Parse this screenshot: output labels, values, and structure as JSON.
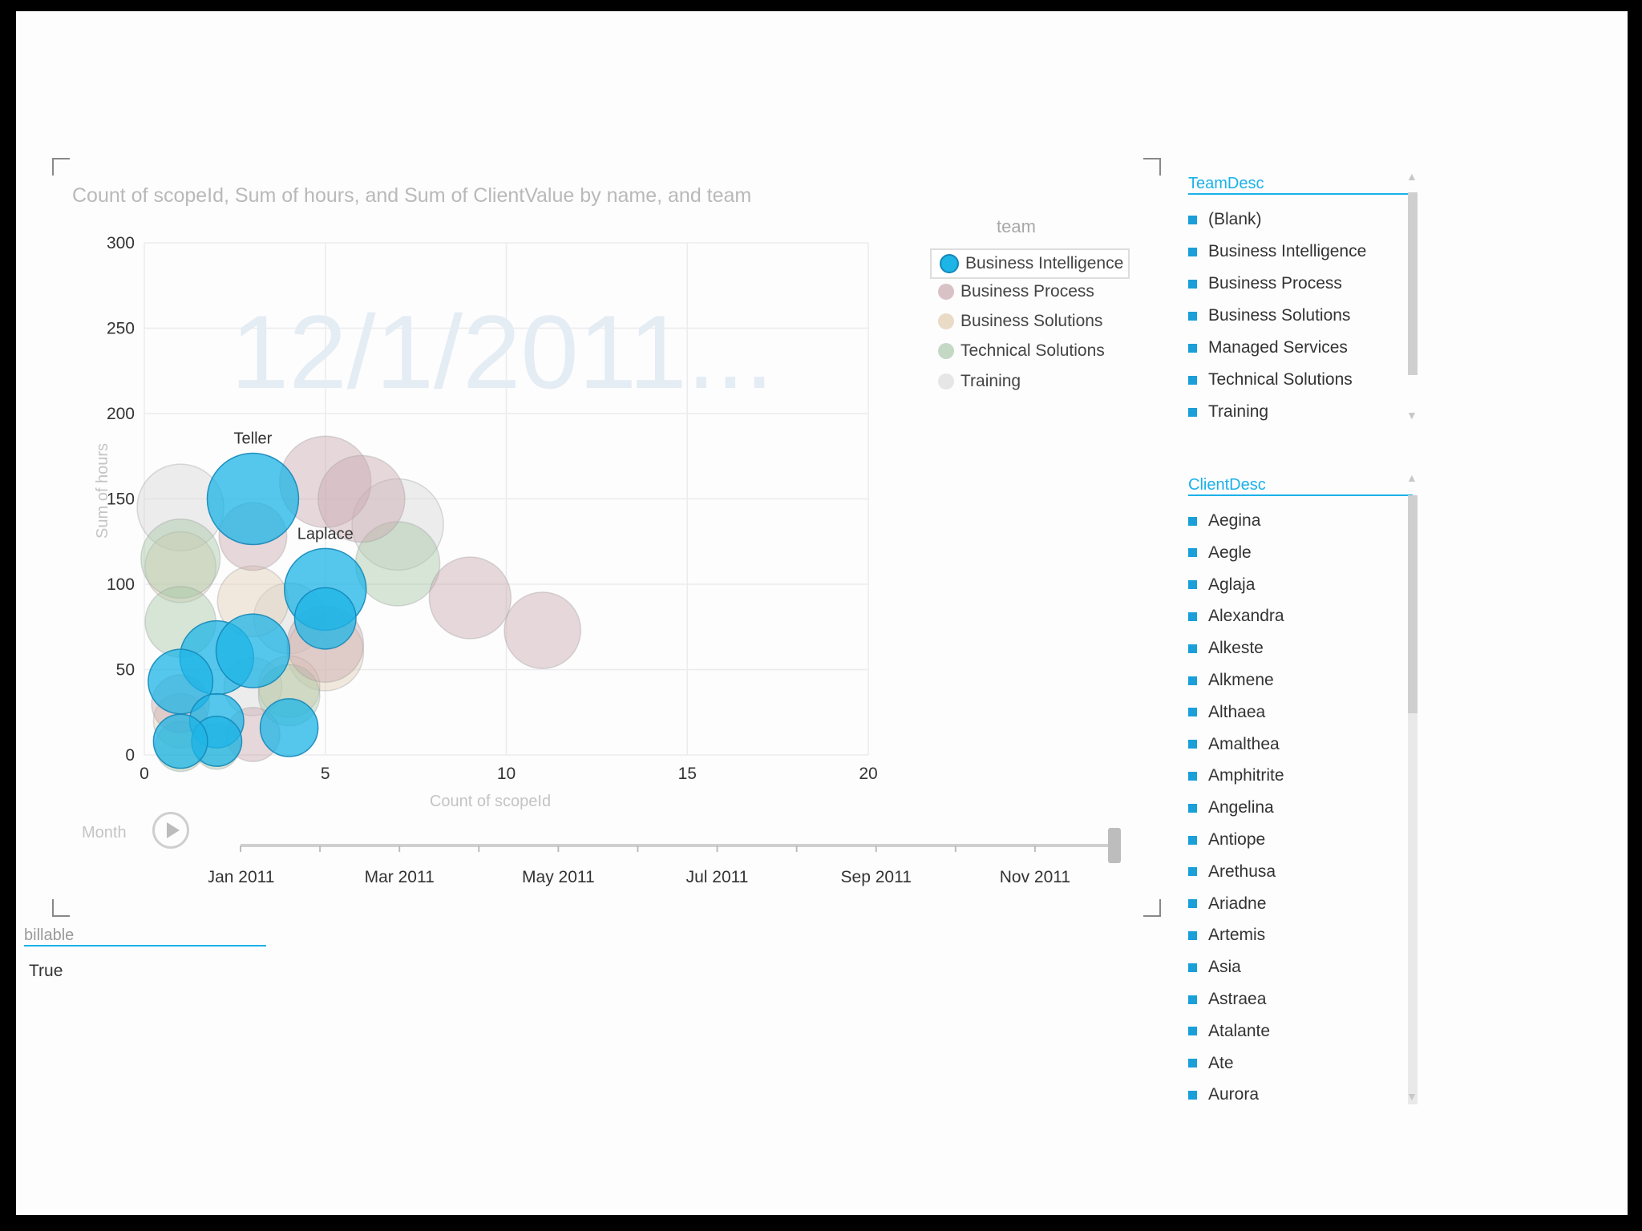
{
  "chart_data": {
    "type": "scatter",
    "title": "Count of scopeId, Sum of hours, and Sum of ClientValue by name, and team",
    "xlabel": "Count of scopeId",
    "ylabel": "Sum of hours",
    "xlim": [
      0,
      20
    ],
    "ylim": [
      0,
      300
    ],
    "x_ticks": [
      0,
      5,
      10,
      15,
      20
    ],
    "y_ticks": [
      0,
      50,
      100,
      150,
      200,
      250,
      300
    ],
    "watermark": "12/1/2011...",
    "legend_title": "team",
    "legend": [
      {
        "name": "Business Intelligence",
        "color": "#1db4e6",
        "selected": true
      },
      {
        "name": "Business Process",
        "color": "#d9c2c6",
        "selected": false
      },
      {
        "name": "Business Solutions",
        "color": "#eadbc6",
        "selected": false
      },
      {
        "name": "Technical Solutions",
        "color": "#c4d9c4",
        "selected": false
      },
      {
        "name": "Training",
        "color": "#e6e6e6",
        "selected": false
      }
    ],
    "series": [
      {
        "name": "Business Intelligence",
        "color": "#1db4e6",
        "points": [
          {
            "x": 3,
            "y": 150,
            "size": 100,
            "label": "Teller"
          },
          {
            "x": 5,
            "y": 97,
            "size": 80,
            "label": "Laplace"
          },
          {
            "x": 2,
            "y": 57,
            "size": 65
          },
          {
            "x": 3,
            "y": 61,
            "size": 65
          },
          {
            "x": 1,
            "y": 43,
            "size": 50
          },
          {
            "x": 2,
            "y": 20,
            "size": 35
          },
          {
            "x": 4,
            "y": 16,
            "size": 40
          },
          {
            "x": 2,
            "y": 8,
            "size": 30
          },
          {
            "x": 1,
            "y": 8,
            "size": 35
          },
          {
            "x": 5,
            "y": 80,
            "size": 45
          }
        ]
      },
      {
        "name": "Business Process",
        "color": "#c9a9b0",
        "points": [
          {
            "x": 5,
            "y": 160,
            "size": 100
          },
          {
            "x": 6,
            "y": 150,
            "size": 90
          },
          {
            "x": 9,
            "y": 92,
            "size": 80
          },
          {
            "x": 11,
            "y": 73,
            "size": 70
          },
          {
            "x": 5,
            "y": 65,
            "size": 70
          },
          {
            "x": 3,
            "y": 12,
            "size": 35
          },
          {
            "x": 1,
            "y": 30,
            "size": 40
          },
          {
            "x": 3,
            "y": 128,
            "size": 55
          }
        ]
      },
      {
        "name": "Business Solutions",
        "color": "#e3cfb5",
        "points": [
          {
            "x": 5,
            "y": 60,
            "size": 70
          },
          {
            "x": 3,
            "y": 90,
            "size": 60
          },
          {
            "x": 1,
            "y": 110,
            "size": 60
          },
          {
            "x": 4,
            "y": 40,
            "size": 45
          },
          {
            "x": 1,
            "y": 20,
            "size": 35
          }
        ]
      },
      {
        "name": "Technical Solutions",
        "color": "#a7c7a7",
        "points": [
          {
            "x": 7,
            "y": 112,
            "size": 85
          },
          {
            "x": 1,
            "y": 115,
            "size": 75
          },
          {
            "x": 1,
            "y": 78,
            "size": 60
          },
          {
            "x": 4,
            "y": 35,
            "size": 45
          },
          {
            "x": 1,
            "y": 5,
            "size": 30
          },
          {
            "x": 2,
            "y": 5,
            "size": 25
          }
        ]
      },
      {
        "name": "Training",
        "color": "#d8d8d8",
        "points": [
          {
            "x": 7,
            "y": 135,
            "size": 100
          },
          {
            "x": 1,
            "y": 145,
            "size": 90
          },
          {
            "x": 4,
            "y": 80,
            "size": 60
          },
          {
            "x": 3,
            "y": 40,
            "size": 40
          }
        ]
      }
    ]
  },
  "play_axis": {
    "label": "Month",
    "ticks": [
      "Jan 2011",
      "Mar 2011",
      "May 2011",
      "Jul 2011",
      "Sep 2011",
      "Nov 2011"
    ],
    "position": 1.0
  },
  "slicers": {
    "billable": {
      "title": "billable",
      "items": [
        "True"
      ]
    },
    "team": {
      "title": "TeamDesc",
      "items": [
        "(Blank)",
        "Business Intelligence",
        "Business Process",
        "Business Solutions",
        "Managed Services",
        "Technical Solutions",
        "Training"
      ]
    },
    "client": {
      "title": "ClientDesc",
      "items": [
        "Aegina",
        "Aegle",
        "Aglaja",
        "Alexandra",
        "Alkeste",
        "Alkmene",
        "Althaea",
        "Amalthea",
        "Amphitrite",
        "Angelina",
        "Antiope",
        "Arethusa",
        "Ariadne",
        "Artemis",
        "Asia",
        "Astraea",
        "Atalante",
        "Ate",
        "Aurora"
      ]
    }
  }
}
